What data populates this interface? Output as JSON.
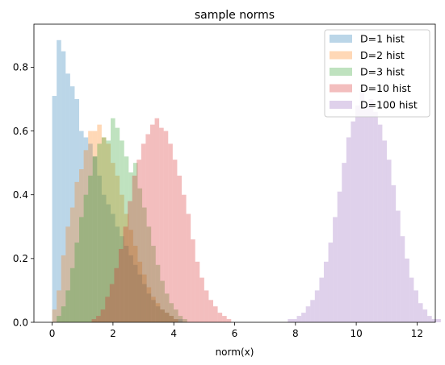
{
  "chart_data": {
    "type": "bar",
    "title": "sample norms",
    "xlabel": "norm(x)",
    "ylabel": "",
    "xlim": [
      -0.6,
      12.6
    ],
    "ylim": [
      0,
      0.935
    ],
    "xticks": [
      0,
      2,
      4,
      6,
      8,
      10,
      12
    ],
    "yticks": [
      0.0,
      0.2,
      0.4,
      0.6,
      0.8
    ],
    "ytick_labels": [
      "0.0",
      "0.2",
      "0.4",
      "0.6",
      "0.8"
    ],
    "grid": false,
    "legend_position": "top-right",
    "bar_alpha": 0.3,
    "series": [
      {
        "name": "D=1 hist",
        "color": "#1f77b4",
        "bin_start": 0.0,
        "bin_width": 0.148,
        "values": [
          0.71,
          0.885,
          0.85,
          0.78,
          0.74,
          0.7,
          0.6,
          0.58,
          0.56,
          0.52,
          0.46,
          0.4,
          0.37,
          0.34,
          0.3,
          0.27,
          0.24,
          0.21,
          0.18,
          0.15,
          0.12,
          0.09,
          0.07,
          0.05,
          0.04,
          0.03,
          0.02,
          0.01,
          0.01
        ]
      },
      {
        "name": "D=2 hist",
        "color": "#ff7f0e",
        "bin_start": 0.0,
        "bin_width": 0.148,
        "values": [
          0.04,
          0.1,
          0.21,
          0.3,
          0.36,
          0.44,
          0.48,
          0.54,
          0.6,
          0.6,
          0.62,
          0.58,
          0.56,
          0.5,
          0.46,
          0.4,
          0.34,
          0.29,
          0.24,
          0.19,
          0.15,
          0.11,
          0.08,
          0.06,
          0.04,
          0.03,
          0.02,
          0.01
        ]
      },
      {
        "name": "D=3 hist",
        "color": "#2ca02c",
        "bin_start": 0.0,
        "bin_width": 0.148,
        "values": [
          0.0,
          0.02,
          0.05,
          0.1,
          0.17,
          0.25,
          0.33,
          0.4,
          0.46,
          0.52,
          0.56,
          0.58,
          0.57,
          0.64,
          0.61,
          0.57,
          0.52,
          0.47,
          0.5,
          0.42,
          0.36,
          0.3,
          0.24,
          0.18,
          0.13,
          0.09,
          0.06,
          0.04,
          0.02,
          0.01
        ]
      },
      {
        "name": "D=10 hist",
        "color": "#d62728",
        "bin_start": 1.3,
        "bin_width": 0.148,
        "values": [
          0.01,
          0.02,
          0.04,
          0.08,
          0.12,
          0.17,
          0.23,
          0.3,
          0.38,
          0.46,
          0.51,
          0.56,
          0.59,
          0.62,
          0.64,
          0.61,
          0.6,
          0.56,
          0.51,
          0.46,
          0.4,
          0.34,
          0.26,
          0.19,
          0.14,
          0.1,
          0.07,
          0.05,
          0.03,
          0.02,
          0.01
        ]
      },
      {
        "name": "D=100 hist",
        "color": "#9467bd",
        "bin_start": 7.75,
        "bin_width": 0.148,
        "values": [
          0.01,
          0.01,
          0.02,
          0.03,
          0.05,
          0.07,
          0.1,
          0.14,
          0.19,
          0.25,
          0.33,
          0.41,
          0.5,
          0.58,
          0.63,
          0.68,
          0.73,
          0.68,
          0.7,
          0.66,
          0.62,
          0.57,
          0.51,
          0.43,
          0.35,
          0.27,
          0.2,
          0.14,
          0.1,
          0.06,
          0.04,
          0.02,
          0.01,
          0.01
        ]
      }
    ]
  }
}
